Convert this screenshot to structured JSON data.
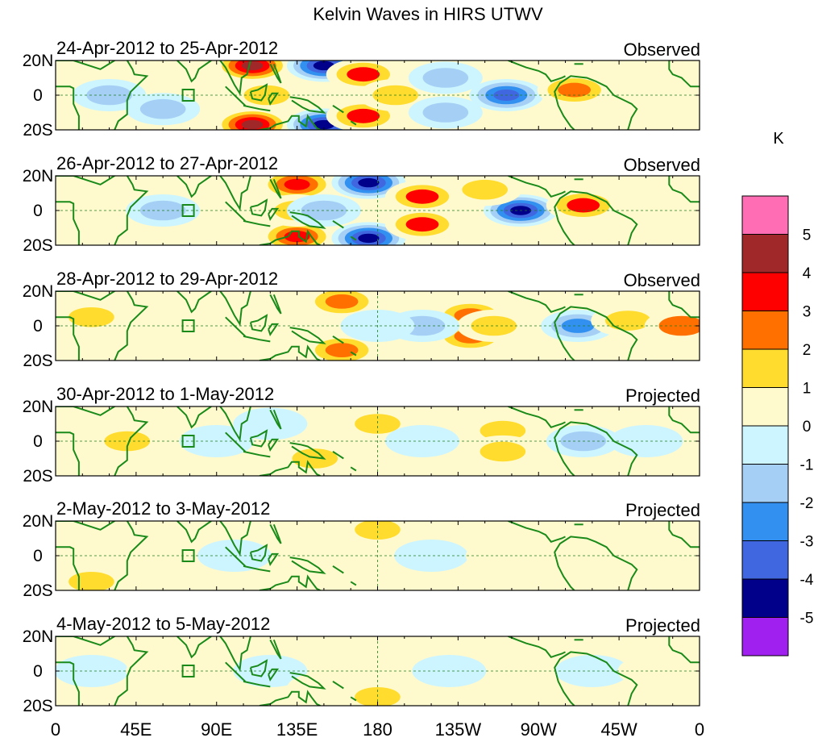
{
  "chart_data": {
    "type": "heatmap",
    "title": "Kelvin Waves in HIRS UTWV",
    "units": "K",
    "x_ticks": [
      "0",
      "45E",
      "90E",
      "135E",
      "180",
      "135W",
      "90W",
      "45W",
      "0"
    ],
    "y_ticks": [
      "20N",
      "0",
      "20S"
    ],
    "xlim": [
      0,
      360
    ],
    "ylim": [
      -20,
      20
    ],
    "colorbar": {
      "levels": [
        "5",
        "4",
        "3",
        "2",
        "1",
        "0",
        "-1",
        "-2",
        "-3",
        "-4",
        "-5"
      ],
      "colors": [
        "#ff6eb4",
        "#a02828",
        "#ff0000",
        "#ff7000",
        "#ffdc2e",
        "#fffacd",
        "#cdf5ff",
        "#a5cff5",
        "#3291f0",
        "#4067e0",
        "#00008b",
        "#a020f0"
      ]
    },
    "panels": [
      {
        "period": "24-Apr-2012 to 25-Apr-2012",
        "kind": "Observed",
        "anomalies": [
          {
            "lon": 110,
            "lat": 17,
            "value": 4.5
          },
          {
            "lon": 110,
            "lat": -17,
            "value": 4.5
          },
          {
            "lon": 118,
            "lat": 0,
            "value": 1.5
          },
          {
            "lon": 150,
            "lat": 17,
            "value": -5
          },
          {
            "lon": 150,
            "lat": -17,
            "value": -5
          },
          {
            "lon": 172,
            "lat": 12,
            "value": 3
          },
          {
            "lon": 172,
            "lat": -12,
            "value": 3
          },
          {
            "lon": 190,
            "lat": 0,
            "value": 1.5
          },
          {
            "lon": 252,
            "lat": 0,
            "value": -3.5
          },
          {
            "lon": 290,
            "lat": 3,
            "value": 2.5
          },
          {
            "lon": 218,
            "lat": 10,
            "value": -1.5
          },
          {
            "lon": 218,
            "lat": -10,
            "value": -1.5
          },
          {
            "lon": 30,
            "lat": 0,
            "value": -1.5
          },
          {
            "lon": 60,
            "lat": -8,
            "value": -1.5
          }
        ]
      },
      {
        "period": "26-Apr-2012 to 27-Apr-2012",
        "kind": "Observed",
        "anomalies": [
          {
            "lon": 135,
            "lat": 15,
            "value": 3.5
          },
          {
            "lon": 135,
            "lat": -15,
            "value": 3.5
          },
          {
            "lon": 135,
            "lat": 0,
            "value": 1.5
          },
          {
            "lon": 175,
            "lat": 16,
            "value": -5
          },
          {
            "lon": 175,
            "lat": -16,
            "value": -4.5
          },
          {
            "lon": 205,
            "lat": 8,
            "value": 3
          },
          {
            "lon": 205,
            "lat": -8,
            "value": 3
          },
          {
            "lon": 260,
            "lat": 0,
            "value": -4.5
          },
          {
            "lon": 295,
            "lat": 3,
            "value": 3
          },
          {
            "lon": 240,
            "lat": 12,
            "value": 1.5
          },
          {
            "lon": 150,
            "lat": 0,
            "value": -1.5
          },
          {
            "lon": 60,
            "lat": 0,
            "value": -1.5
          }
        ]
      },
      {
        "period": "28-Apr-2012 to 29-Apr-2012",
        "kind": "Observed",
        "anomalies": [
          {
            "lon": 160,
            "lat": 14,
            "value": 2.5
          },
          {
            "lon": 160,
            "lat": -14,
            "value": 2.5
          },
          {
            "lon": 232,
            "lat": 6,
            "value": 2.5
          },
          {
            "lon": 232,
            "lat": -6,
            "value": 2.5
          },
          {
            "lon": 292,
            "lat": 0,
            "value": -2.5
          },
          {
            "lon": 245,
            "lat": 0,
            "value": 1.5
          },
          {
            "lon": 320,
            "lat": 3,
            "value": 1.5
          },
          {
            "lon": 350,
            "lat": 0,
            "value": 2
          },
          {
            "lon": 205,
            "lat": 0,
            "value": -1.5
          },
          {
            "lon": 20,
            "lat": 5,
            "value": 1.5
          },
          {
            "lon": 125,
            "lat": 0,
            "value": 0.5
          },
          {
            "lon": 180,
            "lat": 0,
            "value": -1
          }
        ]
      },
      {
        "period": "30-Apr-2012 to 1-May-2012",
        "kind": "Projected",
        "anomalies": [
          {
            "lon": 40,
            "lat": 0,
            "value": 1.5
          },
          {
            "lon": 145,
            "lat": -10,
            "value": 1.5
          },
          {
            "lon": 180,
            "lat": 10,
            "value": 1.5
          },
          {
            "lon": 250,
            "lat": 6,
            "value": 1.5
          },
          {
            "lon": 250,
            "lat": -6,
            "value": 1.5
          },
          {
            "lon": 205,
            "lat": 0,
            "value": -0.5
          },
          {
            "lon": 295,
            "lat": 0,
            "value": -1.5
          },
          {
            "lon": 330,
            "lat": 0,
            "value": -0.5
          },
          {
            "lon": 90,
            "lat": 0,
            "value": -0.5
          },
          {
            "lon": 120,
            "lat": 10,
            "value": -0.5
          }
        ]
      },
      {
        "period": "2-May-2012 to 3-May-2012",
        "kind": "Projected",
        "anomalies": [
          {
            "lon": 60,
            "lat": 8,
            "value": 0.5
          },
          {
            "lon": 100,
            "lat": 0,
            "value": -0.5
          },
          {
            "lon": 160,
            "lat": 10,
            "value": 0.5
          },
          {
            "lon": 180,
            "lat": 15,
            "value": 1.2
          },
          {
            "lon": 210,
            "lat": 0,
            "value": -0.5
          },
          {
            "lon": 250,
            "lat": 0,
            "value": 0.5
          },
          {
            "lon": 320,
            "lat": 0,
            "value": 0.5
          },
          {
            "lon": 20,
            "lat": -15,
            "value": 1.2
          }
        ]
      },
      {
        "period": "4-May-2012 to 5-May-2012",
        "kind": "Projected",
        "anomalies": [
          {
            "lon": 20,
            "lat": 0,
            "value": -0.5
          },
          {
            "lon": 60,
            "lat": 0,
            "value": 0.5
          },
          {
            "lon": 120,
            "lat": 0,
            "value": -0.5
          },
          {
            "lon": 150,
            "lat": -10,
            "value": 0.5
          },
          {
            "lon": 180,
            "lat": -15,
            "value": 1.2
          },
          {
            "lon": 220,
            "lat": 0,
            "value": -0.5
          },
          {
            "lon": 300,
            "lat": 0,
            "value": -0.5
          },
          {
            "lon": 335,
            "lat": 0,
            "value": 0.5
          }
        ]
      }
    ]
  }
}
